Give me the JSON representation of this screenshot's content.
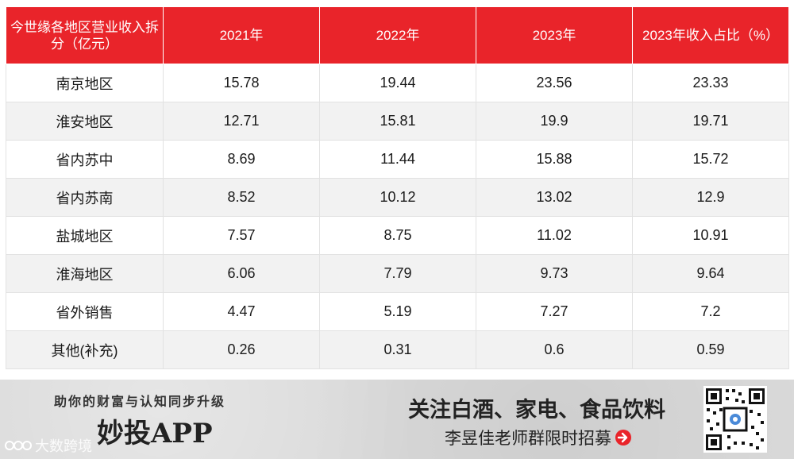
{
  "table": {
    "headers": [
      "今世缘各地区营业收入拆分（亿元）",
      "2021年",
      "2022年",
      "2023年",
      "2023年收入占比（%）"
    ],
    "rows": [
      [
        "南京地区",
        "15.78",
        "19.44",
        "23.56",
        "23.33"
      ],
      [
        "淮安地区",
        "12.71",
        "15.81",
        "19.9",
        "19.71"
      ],
      [
        "省内苏中",
        "8.69",
        "11.44",
        "15.88",
        "15.72"
      ],
      [
        "省内苏南",
        "8.52",
        "10.12",
        "13.02",
        "12.9"
      ],
      [
        "盐城地区",
        "7.57",
        "8.75",
        "11.02",
        "10.91"
      ],
      [
        "淮海地区",
        "6.06",
        "7.79",
        "9.73",
        "9.64"
      ],
      [
        "省外销售",
        "4.47",
        "5.19",
        "7.27",
        "7.2"
      ],
      [
        "其他(补充)",
        "0.26",
        "0.31",
        "0.6",
        "0.59"
      ]
    ]
  },
  "banner": {
    "slogan": "助你的财富与认知同步升级",
    "app_name": "妙投APP",
    "focus_text": "关注白酒、家电、食品饮料",
    "recruit_text": "李昱佳老师群限时招募",
    "watermark": "大数跨境"
  },
  "colors": {
    "header_bg": "#e9242a",
    "header_text": "#ffffff",
    "stripe": "#f2f2f2"
  }
}
